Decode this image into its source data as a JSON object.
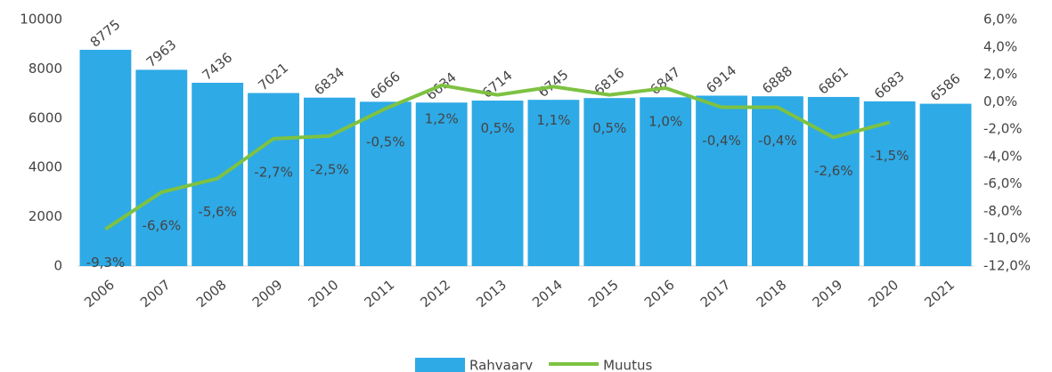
{
  "chart_data": {
    "type": "bar",
    "categories": [
      "2006",
      "2007",
      "2008",
      "2009",
      "2010",
      "2011",
      "2012",
      "2013",
      "2014",
      "2015",
      "2016",
      "2017",
      "2018",
      "2019",
      "2020",
      "2021"
    ],
    "series": [
      {
        "name": "Rahvaarv",
        "type": "bar",
        "color": "#2eaae6",
        "values": [
          8775,
          7963,
          7436,
          7021,
          6834,
          6666,
          6634,
          6714,
          6745,
          6816,
          6847,
          6914,
          6888,
          6861,
          6683,
          6586
        ]
      },
      {
        "name": "Muutus",
        "type": "line",
        "axis": "y2",
        "color": "#7dc242",
        "values": [
          -9.3,
          -6.6,
          -5.6,
          -2.7,
          -2.5,
          -0.5,
          1.2,
          0.5,
          1.1,
          0.5,
          1.0,
          -0.4,
          -0.4,
          -2.6,
          -1.5,
          null
        ],
        "value_labels": [
          "-9,3%",
          "-6,6%",
          "-5,6%",
          "-2,7%",
          "-2,5%",
          "-0,5%",
          "1,2%",
          "0,5%",
          "1,1%",
          "0,5%",
          "1,0%",
          "-0,4%",
          "-0,4%",
          "-2,6%",
          "-1,5%",
          null
        ]
      }
    ],
    "ylim": [
      0,
      10000
    ],
    "yticks": [
      0,
      2000,
      4000,
      6000,
      8000,
      10000
    ],
    "y2lim": [
      -12,
      6
    ],
    "y2ticks": [
      {
        "value": -12,
        "label": "-12,0%"
      },
      {
        "value": -10,
        "label": "-10,0%"
      },
      {
        "value": -8,
        "label": "-8,0%"
      },
      {
        "value": -6,
        "label": "-6,0%"
      },
      {
        "value": -4,
        "label": "-4,0%"
      },
      {
        "value": -2,
        "label": "-2,0%"
      },
      {
        "value": 0,
        "label": "0,0%"
      },
      {
        "value": 2,
        "label": "2,0%"
      },
      {
        "value": 4,
        "label": "4,0%"
      },
      {
        "value": 6,
        "label": "6,0%"
      }
    ],
    "grid": false,
    "legend": "bottom"
  }
}
